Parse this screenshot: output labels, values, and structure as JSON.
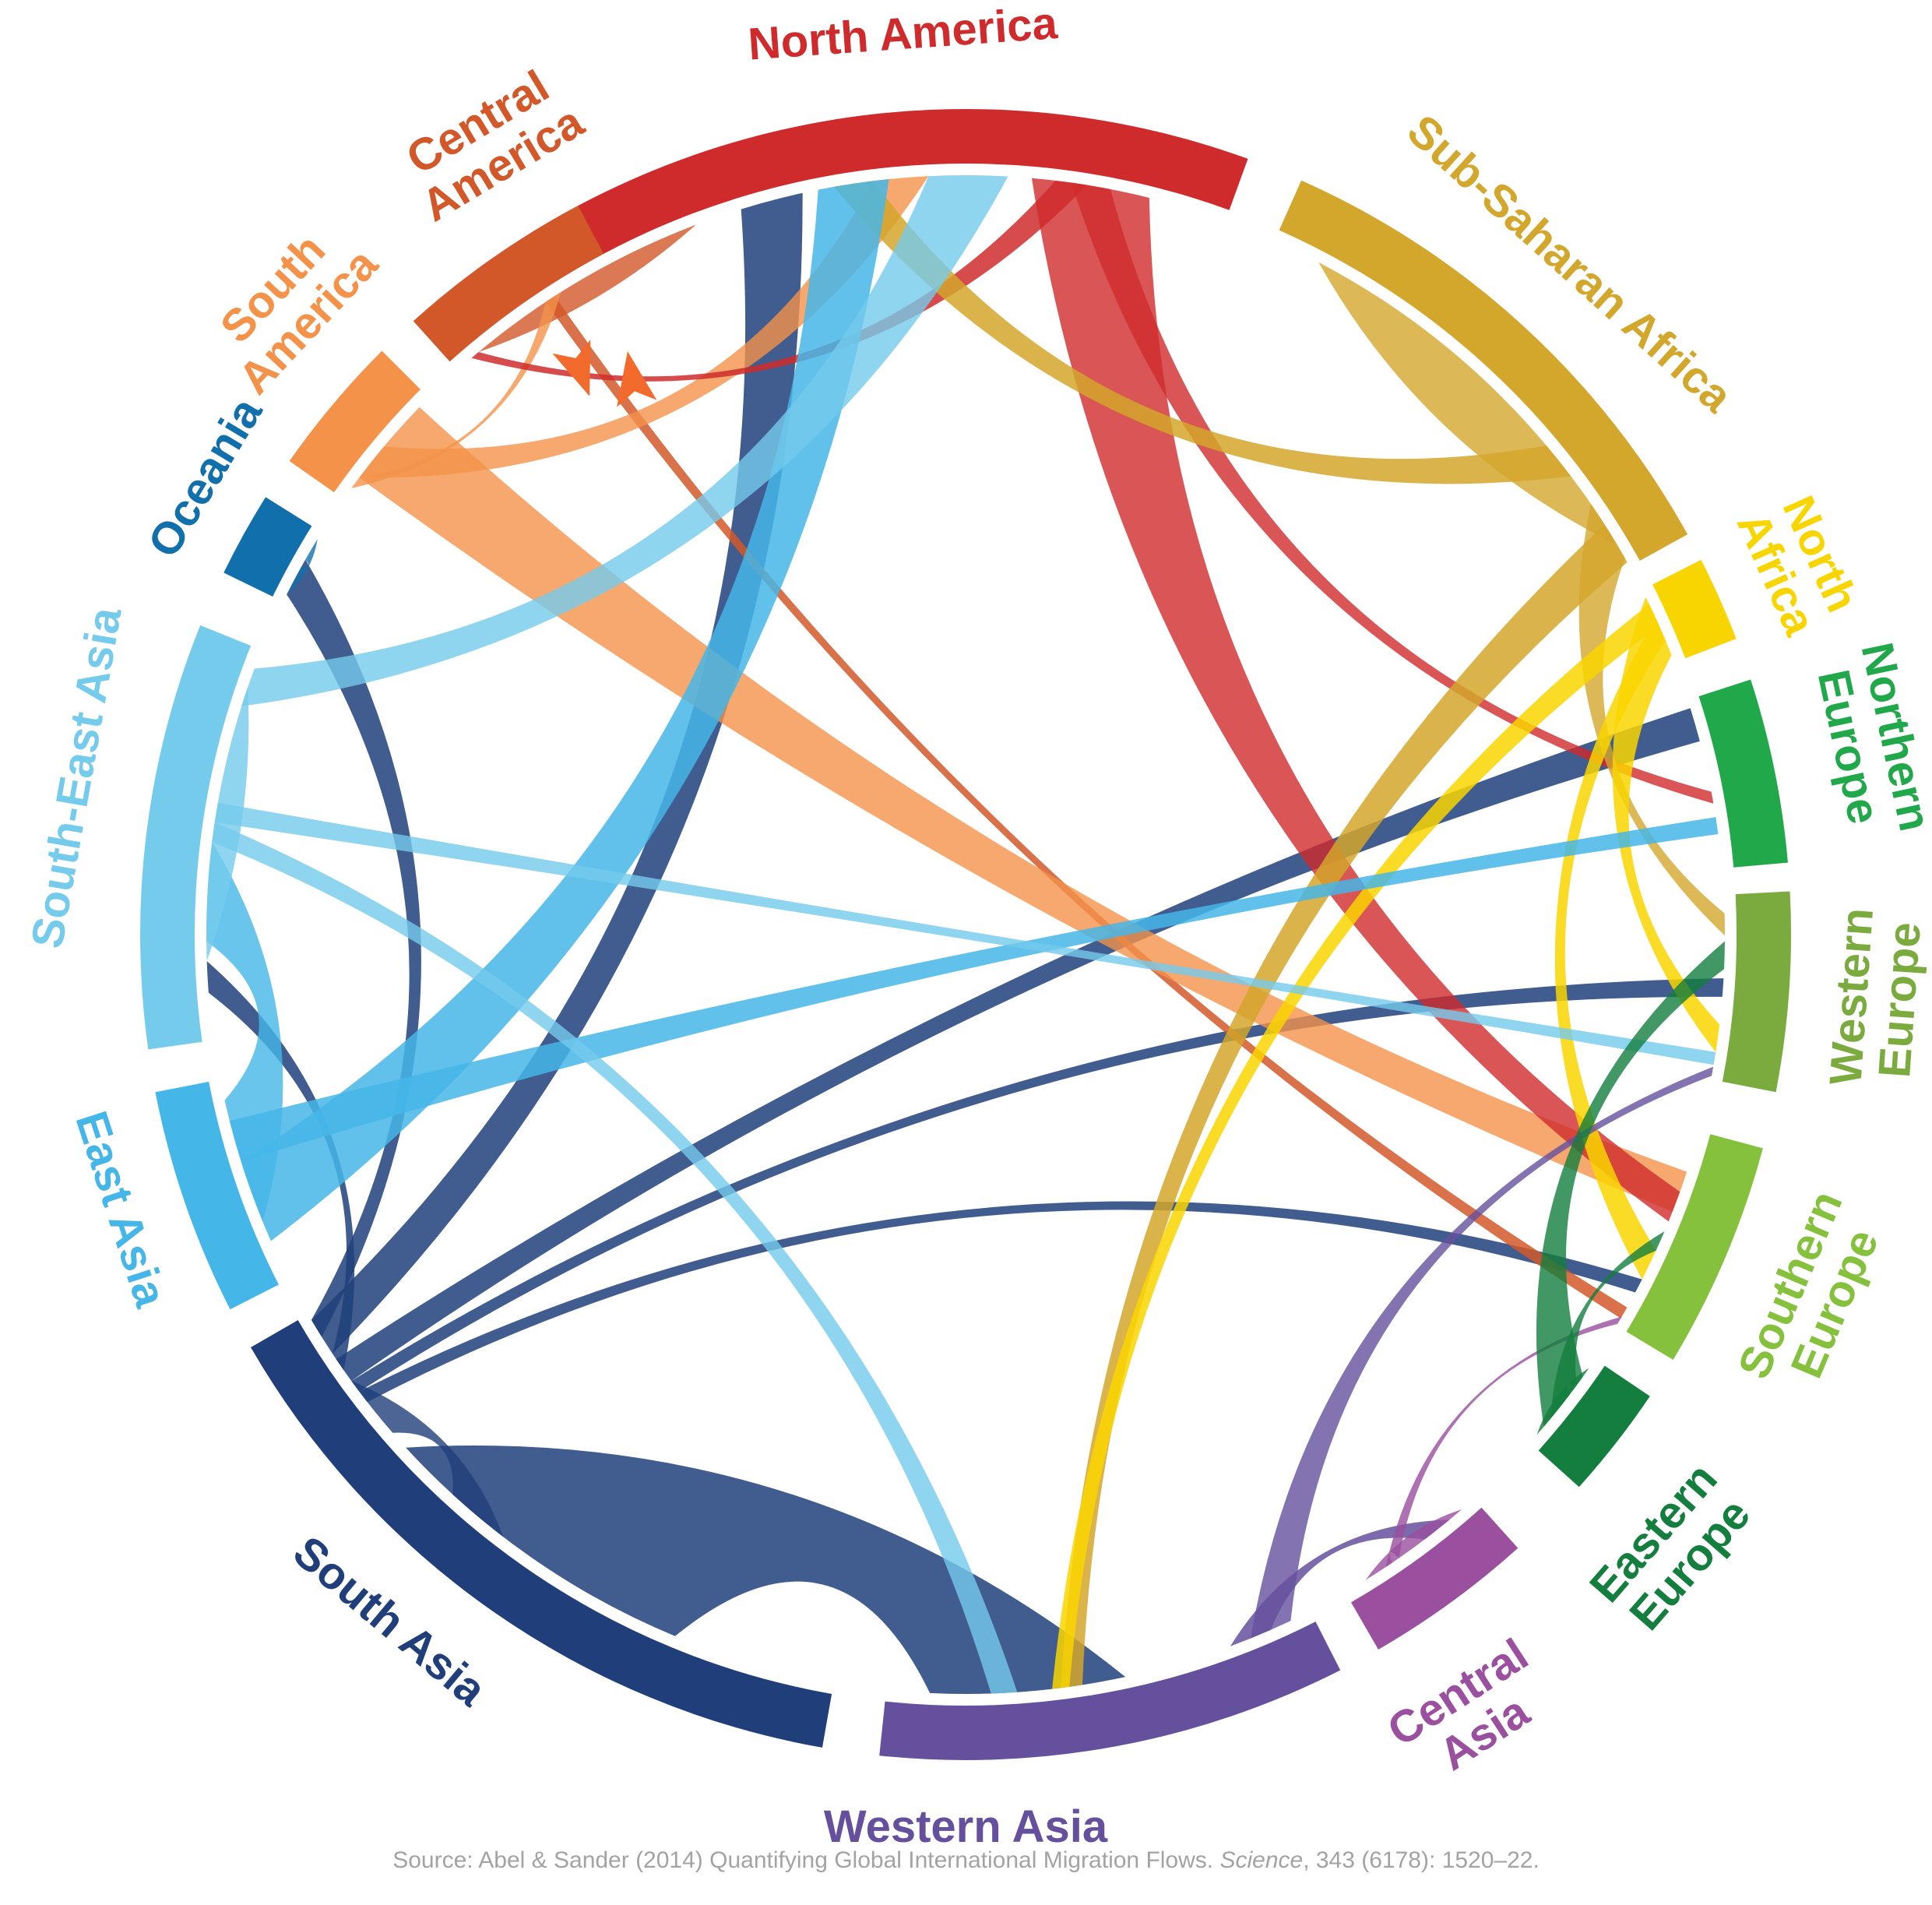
{
  "regions": [
    {
      "id": "north_america",
      "label_lines": [
        "North America"
      ],
      "color": "#cf2b2c"
    },
    {
      "id": "sub_saharan_africa",
      "label_lines": [
        "Sub-Saharan Africa"
      ],
      "color": "#d3a62c"
    },
    {
      "id": "north_africa",
      "label_lines": [
        "North",
        "Africa"
      ],
      "color": "#f9d500"
    },
    {
      "id": "northern_europe",
      "label_lines": [
        "Northern",
        "Europe"
      ],
      "color": "#21a84a"
    },
    {
      "id": "western_europe",
      "label_lines": [
        "Western",
        "Europe"
      ],
      "color": "#7bab3e"
    },
    {
      "id": "southern_europe",
      "label_lines": [
        "Southern",
        "Europe"
      ],
      "color": "#86c13e"
    },
    {
      "id": "eastern_europe",
      "label_lines": [
        "Eastern",
        "Europe"
      ],
      "color": "#137e3d"
    },
    {
      "id": "central_asia",
      "label_lines": [
        "Central",
        "Asia"
      ],
      "color": "#9a4f9f"
    },
    {
      "id": "western_asia",
      "label_lines": [
        "Western Asia"
      ],
      "color": "#65509e"
    },
    {
      "id": "south_asia",
      "label_lines": [
        "South Asia"
      ],
      "color": "#203f7a"
    },
    {
      "id": "east_asia",
      "label_lines": [
        "East Asia"
      ],
      "color": "#45b6e8"
    },
    {
      "id": "south_east_asia",
      "label_lines": [
        "South-East Asia"
      ],
      "color": "#74cbec"
    },
    {
      "id": "oceania",
      "label_lines": [
        "Oceania"
      ],
      "color": "#1170ac"
    },
    {
      "id": "south_america",
      "label_lines": [
        "South",
        "America"
      ],
      "color": "#f4924a"
    },
    {
      "id": "central_america",
      "label_lines": [
        "Central",
        "America"
      ],
      "color": "#d2582a"
    }
  ],
  "source": {
    "prefix": "Source: Abel & Sander (2014) Quantifying Global International Migration Flows.",
    "journal": "Science",
    "suffix": ", 343 (6178): 1520–22."
  }
}
